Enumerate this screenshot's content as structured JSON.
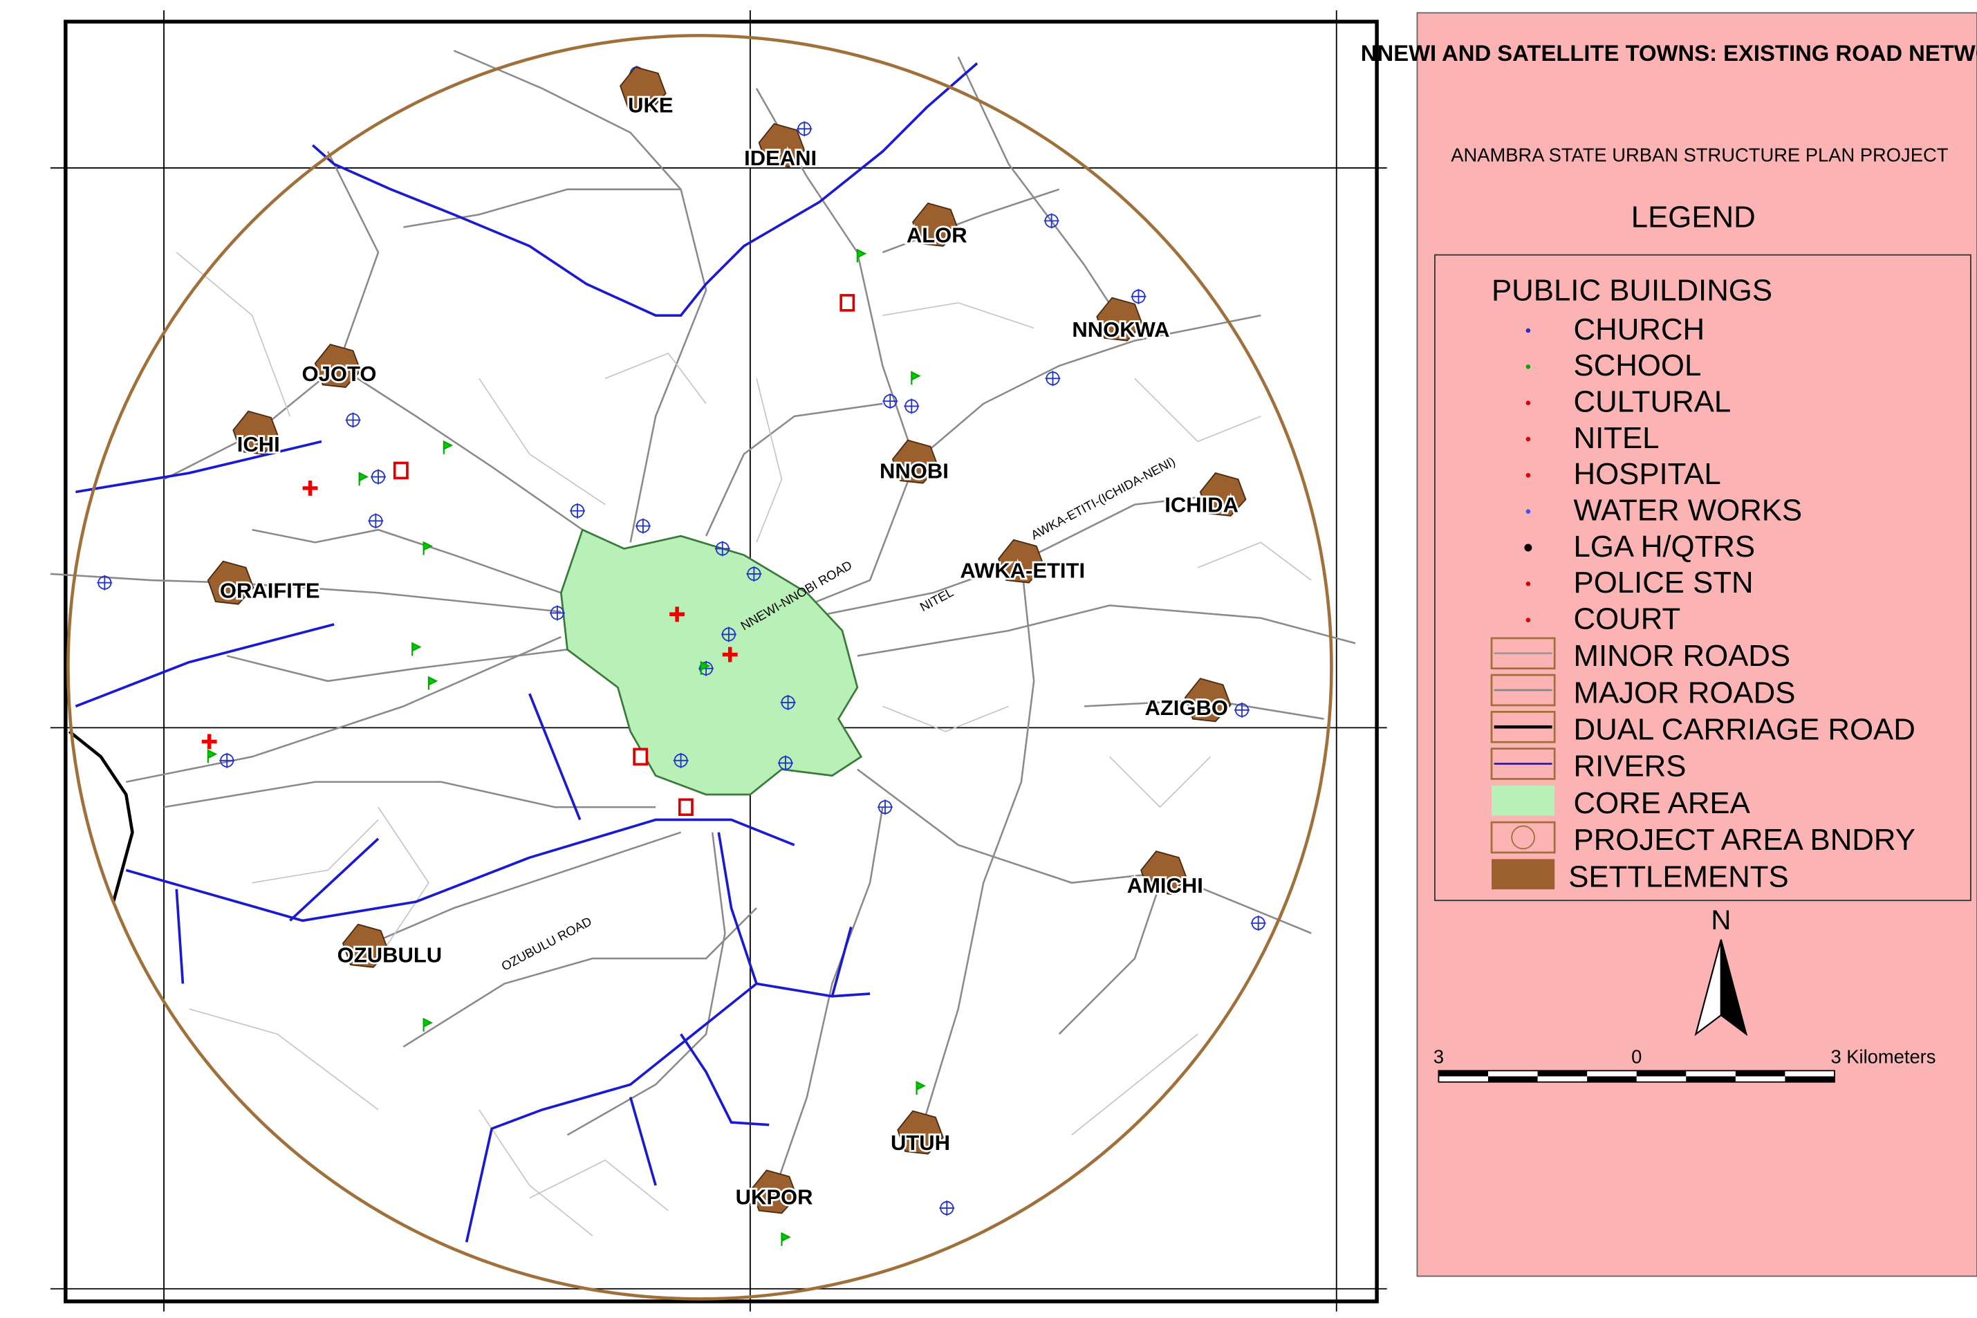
{
  "title": "NNEWI AND SATELLITE TOWNS: EXISTING ROAD NETWORK",
  "subtitle": "ANAMBRA STATE URBAN STRUCTURE PLAN PROJECT",
  "legend": {
    "title": "LEGEND",
    "section": "PUBLIC BUILDINGS",
    "symbols": [
      "CHURCH",
      "SCHOOL",
      "CULTURAL",
      "NITEL",
      "HOSPITAL",
      "WATER WORKS",
      "LGA H/QTRS",
      "POLICE STN",
      "COURT"
    ],
    "areas": [
      "MINOR ROADS",
      "MAJOR ROADS",
      "DUAL CARRIAGE ROAD",
      "RIVERS",
      "CORE AREA",
      "PROJECT AREA BNDRY",
      "SETTLEMENTS"
    ]
  },
  "settlements": [
    "UKE",
    "IDEANI",
    "ALOR",
    "NNOKWA",
    "OJOTO",
    "ICHI",
    "NNOBI",
    "ICHIDA",
    "AWKA-ETITI",
    "ORAIFITE",
    "AZIGBO",
    "AMICHI",
    "OZUBULU",
    "UTUH",
    "UKPOR"
  ],
  "road_labels": [
    "NNEWI-NNOBI ROAD",
    "AWKA-ETITI-(ICHIDA-NENI)",
    "NITEL",
    "OZUBULU ROAD"
  ],
  "north": "N",
  "scale": {
    "labels": [
      "3",
      "0",
      "3  Kilometers"
    ]
  }
}
